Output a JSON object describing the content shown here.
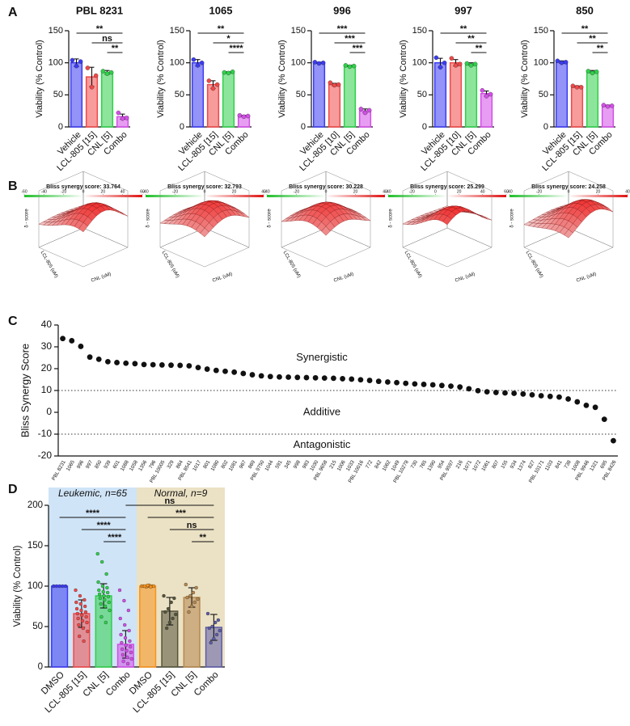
{
  "panel_labels": [
    "A",
    "B",
    "C",
    "D"
  ],
  "chart_data": [
    {
      "type": "bar",
      "title": "PBL 8231",
      "ylabel": "Viability (% Control)",
      "categories": [
        "Vehicle",
        "LCL-805 [15]",
        "CNL [5]",
        "Combo"
      ],
      "values": [
        100,
        78,
        85,
        16
      ],
      "errors": [
        6,
        15,
        3,
        4
      ],
      "points": [
        [
          104,
          95,
          102
        ],
        [
          92,
          62,
          80
        ],
        [
          87,
          83,
          85
        ],
        [
          22,
          13,
          14
        ]
      ],
      "colors": [
        "#3b3bf2",
        "#f04848",
        "#2fd04a",
        "#d44ee8"
      ],
      "ylim": [
        0,
        150
      ],
      "yticks": [
        0,
        50,
        100,
        150
      ],
      "brackets": [
        {
          "between": [
            0,
            3
          ],
          "label": "**"
        },
        {
          "between": [
            1,
            3
          ],
          "label": "ns"
        },
        {
          "between": [
            2,
            3
          ],
          "label": "**"
        }
      ]
    },
    {
      "type": "bar",
      "title": "1065",
      "ylabel": "Viability (% Control)",
      "categories": [
        "Vehicle",
        "LCL-805 [15]",
        "CNL [5]",
        "Combo"
      ],
      "values": [
        100,
        66,
        85,
        17
      ],
      "errors": [
        5,
        6,
        1,
        1
      ],
      "points": [
        [
          105,
          96,
          100
        ],
        [
          72,
          60,
          66
        ],
        [
          85,
          84,
          86
        ],
        [
          18,
          16,
          17
        ]
      ],
      "colors": [
        "#3b3bf2",
        "#f04848",
        "#2fd04a",
        "#d44ee8"
      ],
      "ylim": [
        0,
        150
      ],
      "yticks": [
        0,
        50,
        100,
        150
      ],
      "brackets": [
        {
          "between": [
            0,
            3
          ],
          "label": "**"
        },
        {
          "between": [
            1,
            3
          ],
          "label": "*"
        },
        {
          "between": [
            2,
            3
          ],
          "label": "****"
        }
      ]
    },
    {
      "type": "bar",
      "title": "996",
      "ylabel": "Viability (% Control)",
      "categories": [
        "Vehicle",
        "LCL-805 [10]",
        "CNL [5]",
        "Combo"
      ],
      "values": [
        100,
        66,
        95,
        25
      ],
      "errors": [
        1,
        2,
        1,
        3
      ],
      "points": [
        [
          101,
          99,
          100
        ],
        [
          69,
          65,
          66
        ],
        [
          96,
          94,
          95
        ],
        [
          28,
          22,
          26
        ]
      ],
      "colors": [
        "#3b3bf2",
        "#f04848",
        "#2fd04a",
        "#d44ee8"
      ],
      "ylim": [
        0,
        150
      ],
      "yticks": [
        0,
        50,
        100,
        150
      ],
      "brackets": [
        {
          "between": [
            0,
            3
          ],
          "label": "***"
        },
        {
          "between": [
            1,
            3
          ],
          "label": "***"
        },
        {
          "between": [
            2,
            3
          ],
          "label": "***"
        }
      ]
    },
    {
      "type": "bar",
      "title": "997",
      "ylabel": "Viability (% Control)",
      "categories": [
        "Vehicle",
        "LCL-805 [10]",
        "CNL [5]",
        "Combo"
      ],
      "values": [
        100,
        100,
        98,
        52
      ],
      "errors": [
        7,
        5,
        2,
        4
      ],
      "points": [
        [
          108,
          93,
          100
        ],
        [
          107,
          96,
          98
        ],
        [
          99,
          96,
          98
        ],
        [
          57,
          48,
          51
        ]
      ],
      "colors": [
        "#3b3bf2",
        "#f04848",
        "#2fd04a",
        "#d44ee8"
      ],
      "ylim": [
        0,
        150
      ],
      "yticks": [
        0,
        50,
        100,
        150
      ],
      "brackets": [
        {
          "between": [
            0,
            3
          ],
          "label": "**"
        },
        {
          "between": [
            1,
            3
          ],
          "label": "**"
        },
        {
          "between": [
            2,
            3
          ],
          "label": "**"
        }
      ]
    },
    {
      "type": "bar",
      "title": "850",
      "ylabel": "Viability (% Control)",
      "categories": [
        "Vehicle",
        "LCL-805 [15]",
        "CNL [5]",
        "Combo"
      ],
      "values": [
        101,
        63,
        86,
        33
      ],
      "errors": [
        2,
        1,
        2,
        1
      ],
      "points": [
        [
          103,
          100,
          101
        ],
        [
          64,
          62,
          62
        ],
        [
          87,
          84,
          86
        ],
        [
          34,
          32,
          33
        ]
      ],
      "colors": [
        "#3b3bf2",
        "#f04848",
        "#2fd04a",
        "#d44ee8"
      ],
      "ylim": [
        0,
        150
      ],
      "yticks": [
        0,
        50,
        100,
        150
      ],
      "brackets": [
        {
          "between": [
            0,
            3
          ],
          "label": "**"
        },
        {
          "between": [
            1,
            3
          ],
          "label": "**"
        },
        {
          "between": [
            2,
            3
          ],
          "label": "**"
        }
      ]
    },
    {
      "type": "surface",
      "title": "Bliss synergy score: 33.764",
      "colorbar_ticks": [
        -60,
        -40,
        -20,
        0,
        20,
        40,
        60
      ],
      "clim": [
        -60,
        60
      ],
      "zlabel": "δ - score",
      "xlabel": "LCL-805 (uM)",
      "ylabel": "CNL (uM)"
    },
    {
      "type": "surface",
      "title": "Bliss synergy score: 32.793",
      "colorbar_ticks": [
        -40,
        -20,
        0,
        20,
        40
      ],
      "clim": [
        -40,
        40
      ],
      "zlabel": "δ - score",
      "xlabel": "LCL-805 (uM)",
      "ylabel": "CNL (uM)"
    },
    {
      "type": "surface",
      "title": "Bliss synergy score: 30.228",
      "colorbar_ticks": [
        -40,
        -20,
        0,
        20,
        40
      ],
      "clim": [
        -40,
        40
      ],
      "zlabel": "δ - score",
      "xlabel": "LCL-805 (uM)",
      "ylabel": "CNL (uM)"
    },
    {
      "type": "surface",
      "title": "Bliss synergy score: 25.299",
      "colorbar_ticks": [
        -40,
        -20,
        0,
        20,
        40,
        60
      ],
      "clim": [
        -40,
        60
      ],
      "zlabel": "δ - score",
      "xlabel": "LCL-805 (uM)",
      "ylabel": "CNL (uM)"
    },
    {
      "type": "surface",
      "title": "Bliss synergy score: 24.258",
      "colorbar_ticks": [
        -40,
        -20,
        0,
        20,
        40
      ],
      "clim": [
        -40,
        40
      ],
      "zlabel": "δ - score",
      "xlabel": "LCL-805 (uM)",
      "ylabel": "CNL (uM)"
    },
    {
      "type": "scatter",
      "ylabel": "Bliss Synergy Score",
      "categories": [
        "PBL 8231",
        "1065",
        "996",
        "997",
        "850",
        "939",
        "601",
        "1088",
        "1058",
        "1356",
        "796",
        "PBL 10005",
        "329",
        "864",
        "PBL 8541",
        "1017",
        "801",
        "1080",
        "802",
        "1081",
        "967",
        "869",
        "PBL 9750",
        "1044",
        "591",
        "345",
        "998",
        "983",
        "1030",
        "PBL 9658",
        "215",
        "1006",
        "1033",
        "PBL 10016",
        "772",
        "842",
        "1062",
        "1049",
        "PBL 10278",
        "730",
        "765",
        "1390",
        "954",
        "PBL 9597",
        "216",
        "1071",
        "1072",
        "1061",
        "807",
        "155",
        "934",
        "1374",
        "827",
        "PBL 10171",
        "1103",
        "841",
        "738",
        "1008",
        "PBL 9946",
        "1321",
        "695",
        "PBL 8426"
      ],
      "values": [
        33.8,
        32.8,
        30.2,
        25.3,
        24.3,
        23.2,
        22.8,
        22.5,
        22.3,
        21.9,
        21.8,
        21.7,
        21.6,
        21.5,
        21.3,
        20.5,
        19.8,
        19.2,
        18.8,
        18.4,
        17.8,
        17.2,
        16.7,
        16.4,
        16.2,
        16.1,
        16.0,
        15.9,
        15.8,
        15.7,
        15.6,
        15.4,
        15.2,
        14.9,
        14.6,
        14.2,
        13.9,
        13.6,
        13.3,
        13.0,
        12.8,
        12.6,
        12.3,
        12.0,
        11.6,
        10.8,
        9.9,
        9.4,
        9.1,
        8.9,
        8.7,
        8.4,
        8.0,
        7.6,
        7.3,
        7.0,
        6.1,
        4.8,
        3.2,
        2.3,
        -3.2,
        -13.0
      ],
      "color": "#111111",
      "ylim": [
        -20,
        40
      ],
      "yticks": [
        -20,
        -10,
        0,
        10,
        20,
        30,
        40
      ],
      "hlines": [
        10,
        -10
      ],
      "annotations": [
        "Synergistic",
        "Additive",
        "Antagonistic"
      ]
    },
    {
      "type": "bar",
      "ylabel": "Viability (% Control)",
      "categories": [
        "DMSO",
        "LCL-805 [15]",
        "CNL [5]",
        "Combo",
        "DMSO",
        "LCL-805 [15]",
        "CNL [5]",
        "Combo"
      ],
      "values": [
        100,
        66,
        88,
        28,
        100,
        69,
        86,
        49
      ],
      "errors": [
        null,
        17,
        15,
        17,
        1,
        17,
        12,
        16
      ],
      "points": [
        [
          100,
          100,
          100,
          100,
          100
        ],
        [
          95,
          88,
          83,
          80,
          78,
          75,
          72,
          70,
          68,
          66,
          64,
          62,
          60,
          57,
          55,
          52,
          48,
          44,
          38,
          32
        ],
        [
          140,
          130,
          115,
          105,
          100,
          98,
          95,
          93,
          92,
          90,
          88,
          87,
          85,
          83,
          80,
          78,
          75,
          70,
          62,
          55
        ],
        [
          95,
          82,
          70,
          60,
          52,
          45,
          40,
          36,
          32,
          30,
          27,
          25,
          22,
          20,
          18,
          15,
          12,
          10,
          7,
          4
        ],
        [
          100,
          100,
          101,
          99,
          100,
          100,
          99,
          101,
          100
        ],
        [
          88,
          85,
          80,
          72,
          68,
          65,
          60,
          55,
          48
        ],
        [
          102,
          98,
          92,
          88,
          86,
          84,
          80,
          75,
          68
        ],
        [
          66,
          58,
          55,
          50,
          48,
          45,
          40,
          35,
          30
        ]
      ],
      "colors": [
        "#3b3bf2",
        "#f04848",
        "#2fd04a",
        "#d44ee8",
        "#f7941d",
        "#55553c",
        "#b5874f",
        "#5c5ca8"
      ],
      "ylim": [
        0,
        200
      ],
      "yticks": [
        0,
        50,
        100,
        150,
        200
      ],
      "groups": [
        {
          "label": "Leukemic, n=65",
          "color": "#cfe4f7"
        },
        {
          "label": "Normal, n=9",
          "color": "#ebe1c4"
        }
      ],
      "brackets": [
        {
          "between": [
            3,
            7
          ],
          "label": "ns"
        },
        {
          "between": [
            0,
            3
          ],
          "label": "****"
        },
        {
          "between": [
            4,
            7
          ],
          "label": "***"
        },
        {
          "between": [
            1,
            3
          ],
          "label": "****"
        },
        {
          "between": [
            5,
            7
          ],
          "label": "ns"
        },
        {
          "between": [
            2,
            3
          ],
          "label": "****"
        },
        {
          "between": [
            6,
            7
          ],
          "label": "**"
        }
      ]
    }
  ]
}
